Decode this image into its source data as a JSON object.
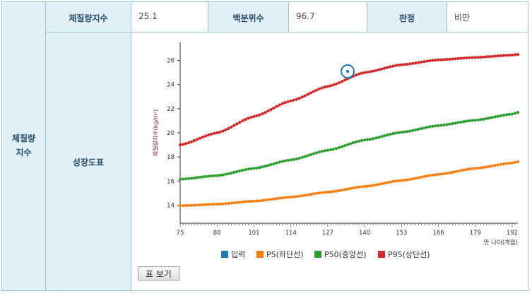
{
  "section": {
    "label_line1": "체질량",
    "label_line2": "지수"
  },
  "summary": {
    "bmi_label": "체질량지수",
    "bmi_value": "25.1",
    "percentile_label": "백분위수",
    "percentile_value": "96.7",
    "judgement_label": "판정",
    "judgement_value": "비만"
  },
  "chart_section_label": "성장도표",
  "view_table_button": "표 보기",
  "colors": {
    "input": "#1f77b4",
    "p5": "#ff7f0e",
    "p50": "#2ca02c",
    "p95": "#d62728"
  },
  "chart_data": {
    "type": "line",
    "ylabel": "체질량지수(kg/m²)",
    "xlabel": "만 나이(개월)",
    "xlim": [
      75,
      194
    ],
    "ylim": [
      12.5,
      27.5
    ],
    "yticks": [
      14,
      16,
      18,
      20,
      22,
      24,
      26
    ],
    "xticks": [
      75,
      88,
      101,
      114,
      127,
      140,
      153,
      166,
      179,
      192
    ],
    "legend_position": "bottom",
    "series": [
      {
        "name": "입력",
        "color": "#1f77b4",
        "points": [
          [
            134,
            25.1
          ]
        ]
      },
      {
        "name": "P5(하단선)",
        "color": "#ff7f0e",
        "x": [
          75,
          88,
          101,
          114,
          127,
          140,
          153,
          166,
          179,
          192,
          194
        ],
        "y": [
          13.95,
          14.08,
          14.33,
          14.67,
          15.08,
          15.55,
          16.05,
          16.55,
          17.05,
          17.5,
          17.6
        ]
      },
      {
        "name": "P50(중앙선)",
        "color": "#2ca02c",
        "x": [
          75,
          88,
          101,
          114,
          127,
          140,
          153,
          166,
          179,
          192,
          194
        ],
        "y": [
          16.15,
          16.45,
          17.05,
          17.75,
          18.55,
          19.4,
          20.05,
          20.6,
          21.05,
          21.55,
          21.7
        ]
      },
      {
        "name": "P95(상단선)",
        "color": "#d62728",
        "x": [
          75,
          88,
          101,
          114,
          127,
          140,
          153,
          166,
          179,
          192,
          194
        ],
        "y": [
          19.0,
          20.0,
          21.35,
          22.65,
          23.85,
          25.0,
          25.65,
          26.05,
          26.25,
          26.45,
          26.5
        ]
      }
    ]
  }
}
